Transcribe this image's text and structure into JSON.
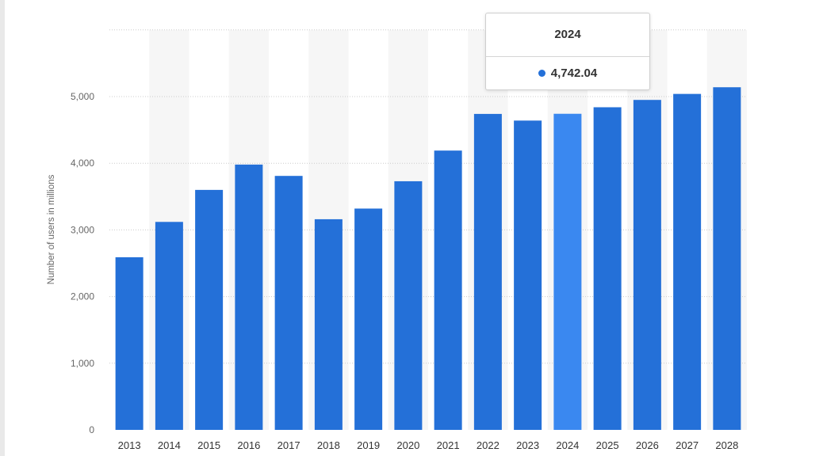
{
  "colors": {
    "bar": "#2470d8",
    "bar_highlight": "#3a88f0",
    "grid": "#cccccc",
    "band": "#f6f6f6"
  },
  "tooltip": {
    "year": "2024",
    "value": "4,742.04"
  },
  "chart_data": {
    "type": "bar",
    "title": "",
    "xlabel": "",
    "ylabel": "Number of users in millions",
    "categories": [
      "2013",
      "2014",
      "2015",
      "2016",
      "2017",
      "2018",
      "2019",
      "2020",
      "2021",
      "2022",
      "2023",
      "2024",
      "2025",
      "2026",
      "2027",
      "2028"
    ],
    "values": [
      2590,
      3120,
      3600,
      3980,
      3810,
      3160,
      3320,
      3730,
      4190,
      4740,
      4640,
      4742.04,
      4840,
      4950,
      5040,
      5140
    ],
    "highlight_category": "2024",
    "yticks": [
      0,
      1000,
      2000,
      3000,
      4000,
      5000
    ],
    "ytick_labels": [
      "0",
      "1,000",
      "2,000",
      "3,000",
      "4,000",
      "5,000"
    ],
    "ylim": [
      0,
      6000
    ],
    "grid": true,
    "legend": false
  }
}
